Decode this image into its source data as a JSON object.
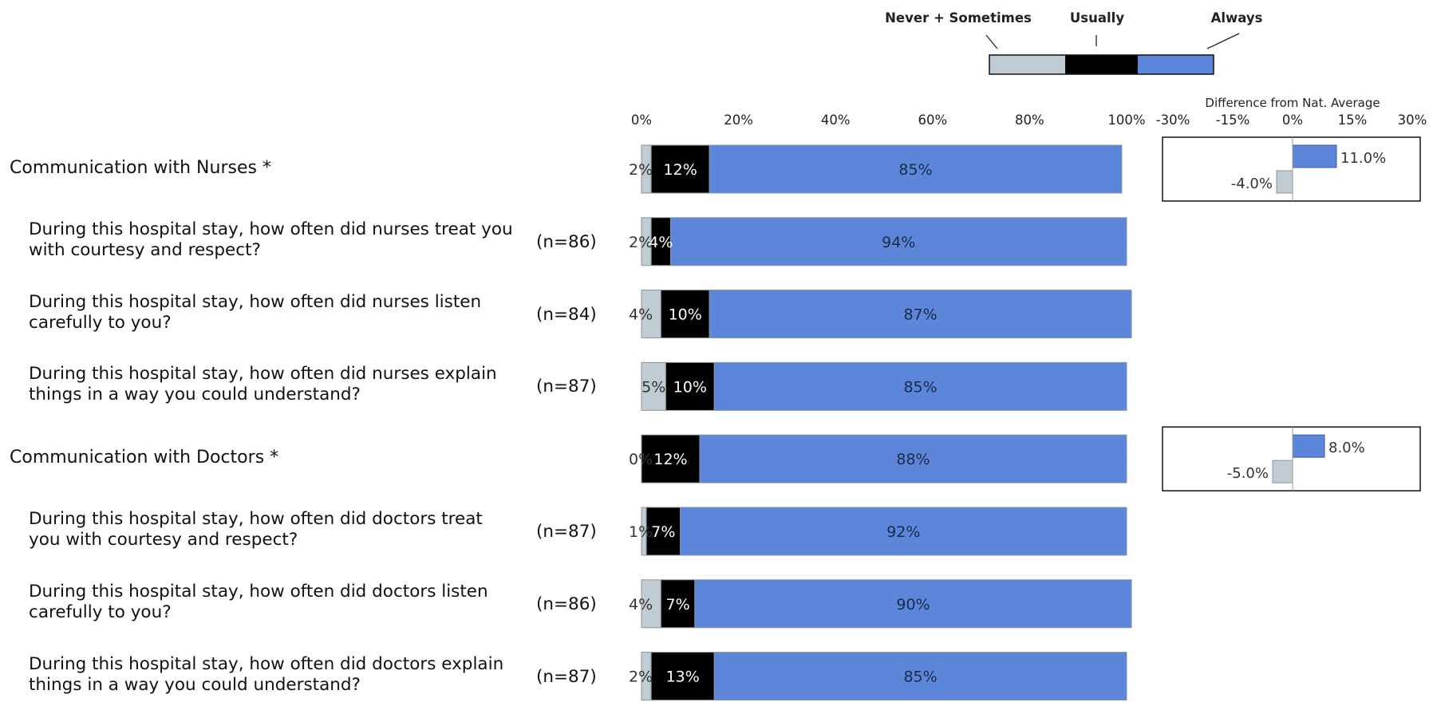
{
  "chart_data": {
    "type": "bar",
    "stacked": true,
    "orientation": "horizontal",
    "legend": {
      "position": "top-right",
      "entries": [
        {
          "name": "Never + Sometimes",
          "color": "#c0cbd2"
        },
        {
          "name": "Usually",
          "color": "#000000"
        },
        {
          "name": "Always",
          "color": "#5b86d9"
        }
      ]
    },
    "x_ticks": [
      "0%",
      "20%",
      "40%",
      "60%",
      "80%",
      "100%"
    ],
    "xlim": [
      0,
      100
    ],
    "rows": [
      {
        "label": "Communication with Nurses *",
        "summary": true,
        "n": "",
        "values": [
          2,
          12,
          85
        ],
        "labels": [
          "2%",
          "12%",
          "85%"
        ]
      },
      {
        "label": "During this hospital stay, how often did nurses treat you with courtesy and respect?",
        "summary": false,
        "n": "(n=86)",
        "values": [
          2,
          4,
          94
        ],
        "labels": [
          "2%",
          "4%",
          "94%"
        ]
      },
      {
        "label": "During this hospital stay, how often did nurses listen carefully to you?",
        "summary": false,
        "n": "(n=84)",
        "values": [
          4,
          10,
          87
        ],
        "labels": [
          "4%",
          "10%",
          "87%"
        ]
      },
      {
        "label": "During this hospital stay, how often did nurses explain things in a way you could understand?",
        "summary": false,
        "n": "(n=87)",
        "values": [
          5,
          10,
          85
        ],
        "labels": [
          "5%",
          "10%",
          "85%"
        ]
      },
      {
        "label": "Communication with Doctors *",
        "summary": true,
        "n": "",
        "values": [
          0,
          12,
          88
        ],
        "labels": [
          "0%",
          "12%",
          "88%"
        ]
      },
      {
        "label": "During this hospital stay, how often did doctors treat you with courtesy and respect?",
        "summary": false,
        "n": "(n=87)",
        "values": [
          1,
          7,
          92
        ],
        "labels": [
          "1%",
          "7%",
          "92%"
        ]
      },
      {
        "label": "During this hospital stay, how often did doctors listen carefully to you?",
        "summary": false,
        "n": "(n=86)",
        "values": [
          4,
          7,
          90
        ],
        "labels": [
          "4%",
          "7%",
          "90%"
        ]
      },
      {
        "label": "During this hospital stay, how often did doctors explain things in a way you could understand?",
        "summary": false,
        "n": "(n=87)",
        "values": [
          2,
          13,
          85
        ],
        "labels": [
          "2%",
          "13%",
          "85%"
        ]
      }
    ],
    "difference_panel": {
      "title": "Difference from Nat. Average",
      "x_ticks": [
        "-30%",
        "-15%",
        "0%",
        "15%",
        "30%"
      ],
      "xlim": [
        -30,
        30
      ],
      "items": [
        {
          "row": 0,
          "positive": 11.0,
          "positive_label": "11.0%",
          "negative": -4.0,
          "negative_label": "-4.0%"
        },
        {
          "row": 4,
          "positive": 8.0,
          "positive_label": "8.0%",
          "negative": -5.0,
          "negative_label": "-5.0%"
        }
      ]
    }
  }
}
